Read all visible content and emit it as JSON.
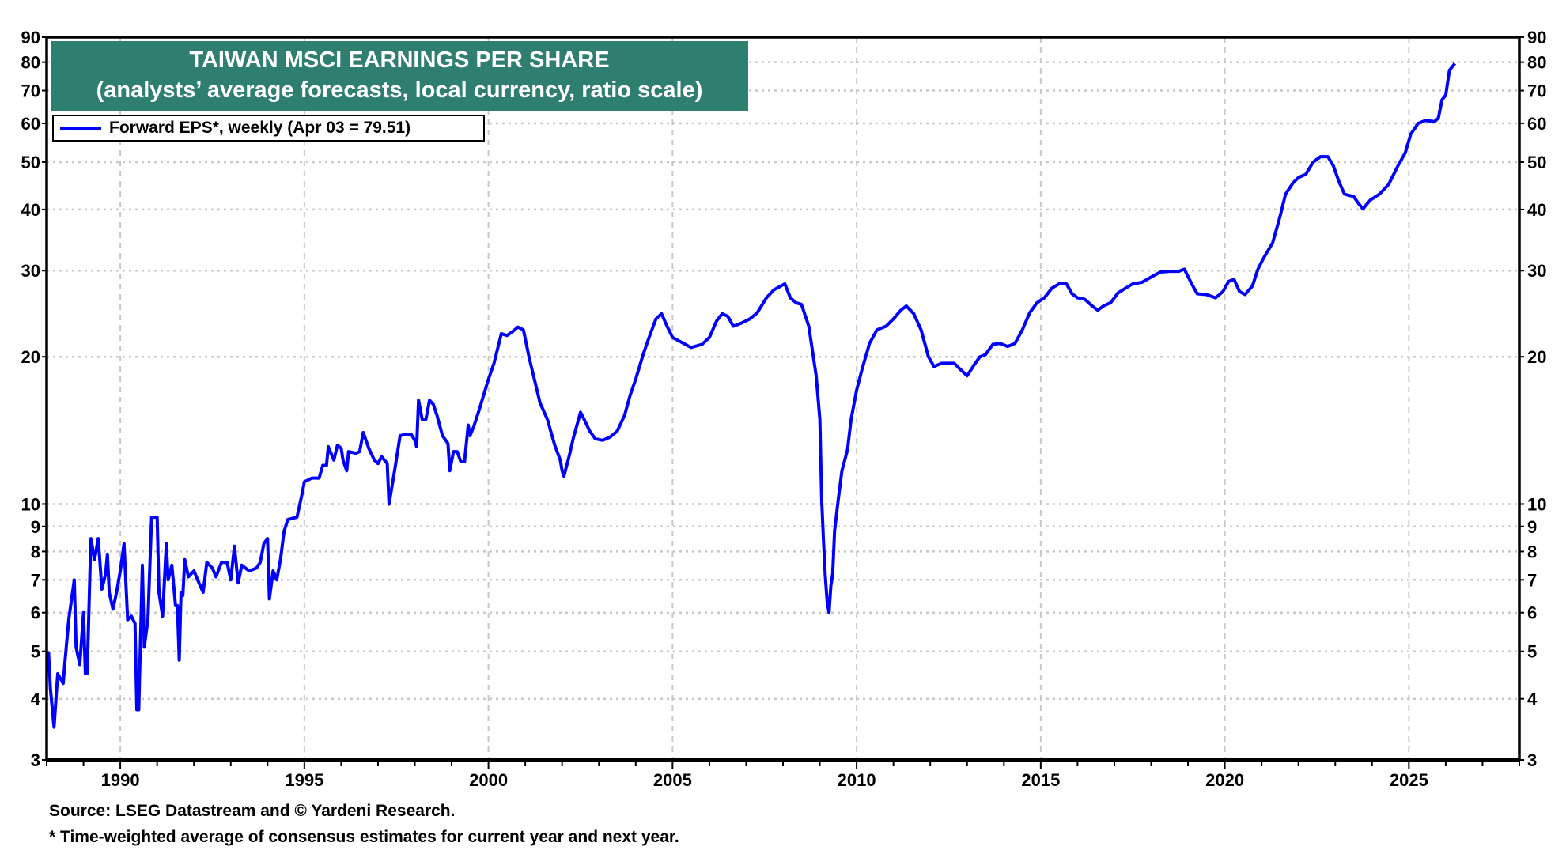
{
  "chart_data": {
    "type": "line",
    "title": "TAIWAN MSCI EARNINGS PER SHARE",
    "subtitle": "(analysts’ average forecasts, local currency, ratio scale)",
    "xlabel": "",
    "ylabel": "",
    "xlim": [
      1988,
      2028
    ],
    "ylim": [
      3,
      90
    ],
    "y_scale": "log",
    "grid": true,
    "legend_position": "top-left",
    "x_ticks": [
      "1990",
      "1995",
      "2000",
      "2005",
      "2010",
      "2015",
      "2020",
      "2025"
    ],
    "y_ticks": [
      "3",
      "4",
      "5",
      "6",
      "7",
      "8",
      "9",
      "10",
      "20",
      "30",
      "40",
      "50",
      "60",
      "70",
      "80",
      "90"
    ],
    "series": [
      {
        "name": "Forward EPS*, weekly (Apr 03 = 79.51)",
        "color": "#0000FF",
        "points": [
          [
            1988.05,
            5.0
          ],
          [
            1988.1,
            4.2
          ],
          [
            1988.2,
            3.5
          ],
          [
            1988.3,
            4.5
          ],
          [
            1988.45,
            4.3
          ],
          [
            1988.5,
            4.8
          ],
          [
            1988.6,
            5.8
          ],
          [
            1988.75,
            7.0
          ],
          [
            1988.8,
            5.1
          ],
          [
            1988.9,
            4.7
          ],
          [
            1989.0,
            6.0
          ],
          [
            1989.05,
            4.5
          ],
          [
            1989.1,
            4.5
          ],
          [
            1989.2,
            8.5
          ],
          [
            1989.3,
            7.7
          ],
          [
            1989.4,
            8.5
          ],
          [
            1989.5,
            6.7
          ],
          [
            1989.6,
            7.2
          ],
          [
            1989.65,
            7.9
          ],
          [
            1989.7,
            6.6
          ],
          [
            1989.8,
            6.1
          ],
          [
            1989.9,
            6.6
          ],
          [
            1990.0,
            7.3
          ],
          [
            1990.1,
            8.3
          ],
          [
            1990.2,
            5.8
          ],
          [
            1990.3,
            5.9
          ],
          [
            1990.4,
            5.7
          ],
          [
            1990.45,
            3.8
          ],
          [
            1990.5,
            3.8
          ],
          [
            1990.6,
            7.5
          ],
          [
            1990.65,
            5.1
          ],
          [
            1990.75,
            5.8
          ],
          [
            1990.85,
            9.4
          ],
          [
            1991.0,
            9.4
          ],
          [
            1991.05,
            6.6
          ],
          [
            1991.15,
            5.9
          ],
          [
            1991.25,
            8.3
          ],
          [
            1991.3,
            7.0
          ],
          [
            1991.4,
            7.5
          ],
          [
            1991.5,
            6.2
          ],
          [
            1991.55,
            6.2
          ],
          [
            1991.6,
            4.8
          ],
          [
            1991.65,
            6.6
          ],
          [
            1991.7,
            6.5
          ],
          [
            1991.75,
            7.7
          ],
          [
            1991.85,
            7.1
          ],
          [
            1992.0,
            7.3
          ],
          [
            1992.1,
            7.0
          ],
          [
            1992.25,
            6.6
          ],
          [
            1992.35,
            7.6
          ],
          [
            1992.5,
            7.4
          ],
          [
            1992.6,
            7.1
          ],
          [
            1992.75,
            7.6
          ],
          [
            1992.9,
            7.6
          ],
          [
            1993.0,
            7.0
          ],
          [
            1993.1,
            8.2
          ],
          [
            1993.2,
            6.9
          ],
          [
            1993.3,
            7.5
          ],
          [
            1993.5,
            7.3
          ],
          [
            1993.7,
            7.4
          ],
          [
            1993.8,
            7.6
          ],
          [
            1993.9,
            8.3
          ],
          [
            1994.0,
            8.5
          ],
          [
            1994.05,
            6.4
          ],
          [
            1994.15,
            7.3
          ],
          [
            1994.25,
            7.0
          ],
          [
            1994.35,
            7.7
          ],
          [
            1994.45,
            8.8
          ],
          [
            1994.55,
            9.3
          ],
          [
            1994.8,
            9.4
          ],
          [
            1994.95,
            10.6
          ],
          [
            1995.0,
            11.1
          ],
          [
            1995.2,
            11.3
          ],
          [
            1995.4,
            11.3
          ],
          [
            1995.5,
            12.0
          ],
          [
            1995.6,
            12.0
          ],
          [
            1995.65,
            13.1
          ],
          [
            1995.8,
            12.3
          ],
          [
            1995.9,
            13.2
          ],
          [
            1996.0,
            13.0
          ],
          [
            1996.05,
            12.3
          ],
          [
            1996.15,
            11.7
          ],
          [
            1996.2,
            12.8
          ],
          [
            1996.4,
            12.7
          ],
          [
            1996.5,
            12.8
          ],
          [
            1996.6,
            14.0
          ],
          [
            1996.75,
            13.0
          ],
          [
            1996.9,
            12.3
          ],
          [
            1997.0,
            12.1
          ],
          [
            1997.1,
            12.5
          ],
          [
            1997.25,
            12.1
          ],
          [
            1997.3,
            10.0
          ],
          [
            1997.45,
            11.7
          ],
          [
            1997.6,
            13.8
          ],
          [
            1997.8,
            13.9
          ],
          [
            1997.9,
            13.9
          ],
          [
            1998.0,
            13.5
          ],
          [
            1998.05,
            13.1
          ],
          [
            1998.1,
            16.3
          ],
          [
            1998.2,
            14.9
          ],
          [
            1998.3,
            14.9
          ],
          [
            1998.4,
            16.3
          ],
          [
            1998.5,
            16.0
          ],
          [
            1998.6,
            15.2
          ],
          [
            1998.75,
            13.8
          ],
          [
            1998.9,
            13.3
          ],
          [
            1998.95,
            11.7
          ],
          [
            1999.05,
            12.8
          ],
          [
            1999.15,
            12.8
          ],
          [
            1999.25,
            12.2
          ],
          [
            1999.35,
            12.2
          ],
          [
            1999.45,
            14.5
          ],
          [
            1999.5,
            13.8
          ],
          [
            1999.6,
            14.4
          ],
          [
            1999.75,
            15.6
          ],
          [
            1999.9,
            17.0
          ],
          [
            2000.0,
            18.0
          ],
          [
            2000.15,
            19.4
          ],
          [
            2000.35,
            22.3
          ],
          [
            2000.5,
            22.1
          ],
          [
            2000.65,
            22.5
          ],
          [
            2000.8,
            23.0
          ],
          [
            2000.95,
            22.7
          ],
          [
            2001.1,
            20.0
          ],
          [
            2001.2,
            18.6
          ],
          [
            2001.4,
            16.1
          ],
          [
            2001.6,
            14.9
          ],
          [
            2001.8,
            13.2
          ],
          [
            2001.95,
            12.3
          ],
          [
            2002.0,
            11.7
          ],
          [
            2002.05,
            11.4
          ],
          [
            2002.2,
            12.6
          ],
          [
            2002.3,
            13.6
          ],
          [
            2002.5,
            15.4
          ],
          [
            2002.6,
            14.9
          ],
          [
            2002.75,
            14.1
          ],
          [
            2002.9,
            13.6
          ],
          [
            2003.1,
            13.5
          ],
          [
            2003.3,
            13.7
          ],
          [
            2003.5,
            14.1
          ],
          [
            2003.7,
            15.2
          ],
          [
            2003.85,
            16.7
          ],
          [
            2004.0,
            18.0
          ],
          [
            2004.2,
            20.2
          ],
          [
            2004.4,
            22.3
          ],
          [
            2004.55,
            23.9
          ],
          [
            2004.7,
            24.5
          ],
          [
            2004.85,
            23.1
          ],
          [
            2005.0,
            21.9
          ],
          [
            2005.3,
            21.3
          ],
          [
            2005.5,
            20.9
          ],
          [
            2005.8,
            21.2
          ],
          [
            2006.0,
            21.9
          ],
          [
            2006.2,
            23.7
          ],
          [
            2006.35,
            24.5
          ],
          [
            2006.5,
            24.2
          ],
          [
            2006.65,
            23.1
          ],
          [
            2006.85,
            23.4
          ],
          [
            2007.1,
            23.9
          ],
          [
            2007.3,
            24.6
          ],
          [
            2007.55,
            26.4
          ],
          [
            2007.75,
            27.4
          ],
          [
            2007.9,
            27.8
          ],
          [
            2008.05,
            28.2
          ],
          [
            2008.2,
            26.4
          ],
          [
            2008.35,
            25.8
          ],
          [
            2008.5,
            25.6
          ],
          [
            2008.7,
            23.1
          ],
          [
            2008.9,
            18.3
          ],
          [
            2009.0,
            14.9
          ],
          [
            2009.05,
            10.2
          ],
          [
            2009.1,
            8.4
          ],
          [
            2009.15,
            7.1
          ],
          [
            2009.2,
            6.3
          ],
          [
            2009.25,
            6.0
          ],
          [
            2009.3,
            6.8
          ],
          [
            2009.35,
            7.2
          ],
          [
            2009.4,
            8.8
          ],
          [
            2009.5,
            10.2
          ],
          [
            2009.6,
            11.7
          ],
          [
            2009.75,
            12.9
          ],
          [
            2009.85,
            14.9
          ],
          [
            2010.0,
            17.1
          ],
          [
            2010.15,
            18.9
          ],
          [
            2010.35,
            21.3
          ],
          [
            2010.55,
            22.7
          ],
          [
            2010.8,
            23.1
          ],
          [
            2011.0,
            23.9
          ],
          [
            2011.2,
            24.9
          ],
          [
            2011.35,
            25.4
          ],
          [
            2011.55,
            24.5
          ],
          [
            2011.75,
            22.7
          ],
          [
            2011.95,
            20.0
          ],
          [
            2012.1,
            19.1
          ],
          [
            2012.3,
            19.4
          ],
          [
            2012.5,
            19.4
          ],
          [
            2012.65,
            19.4
          ],
          [
            2012.8,
            18.9
          ],
          [
            2013.0,
            18.3
          ],
          [
            2013.2,
            19.3
          ],
          [
            2013.35,
            20.0
          ],
          [
            2013.5,
            20.2
          ],
          [
            2013.7,
            21.2
          ],
          [
            2013.9,
            21.3
          ],
          [
            2014.1,
            21.0
          ],
          [
            2014.3,
            21.3
          ],
          [
            2014.5,
            22.7
          ],
          [
            2014.7,
            24.6
          ],
          [
            2014.9,
            25.8
          ],
          [
            2015.1,
            26.4
          ],
          [
            2015.3,
            27.6
          ],
          [
            2015.5,
            28.2
          ],
          [
            2015.7,
            28.2
          ],
          [
            2015.85,
            26.9
          ],
          [
            2016.0,
            26.4
          ],
          [
            2016.2,
            26.2
          ],
          [
            2016.4,
            25.4
          ],
          [
            2016.55,
            24.9
          ],
          [
            2016.7,
            25.4
          ],
          [
            2016.9,
            25.8
          ],
          [
            2017.1,
            27.0
          ],
          [
            2017.3,
            27.6
          ],
          [
            2017.5,
            28.2
          ],
          [
            2017.75,
            28.4
          ],
          [
            2018.0,
            29.1
          ],
          [
            2018.25,
            29.8
          ],
          [
            2018.5,
            29.9
          ],
          [
            2018.75,
            29.9
          ],
          [
            2018.9,
            30.2
          ],
          [
            2019.1,
            28.2
          ],
          [
            2019.25,
            26.9
          ],
          [
            2019.5,
            26.8
          ],
          [
            2019.75,
            26.4
          ],
          [
            2019.95,
            27.2
          ],
          [
            2020.1,
            28.5
          ],
          [
            2020.25,
            28.8
          ],
          [
            2020.4,
            27.2
          ],
          [
            2020.55,
            26.8
          ],
          [
            2020.75,
            27.9
          ],
          [
            2020.9,
            30.2
          ],
          [
            2021.05,
            31.8
          ],
          [
            2021.3,
            34.2
          ],
          [
            2021.5,
            38.7
          ],
          [
            2021.65,
            43.0
          ],
          [
            2021.85,
            45.3
          ],
          [
            2022.0,
            46.5
          ],
          [
            2022.2,
            47.2
          ],
          [
            2022.4,
            50.0
          ],
          [
            2022.6,
            51.3
          ],
          [
            2022.8,
            51.3
          ],
          [
            2022.95,
            49.1
          ],
          [
            2023.1,
            45.6
          ],
          [
            2023.25,
            43.0
          ],
          [
            2023.5,
            42.5
          ],
          [
            2023.65,
            41.0
          ],
          [
            2023.75,
            40.1
          ],
          [
            2023.95,
            41.8
          ],
          [
            2024.2,
            43.0
          ],
          [
            2024.45,
            45.0
          ],
          [
            2024.7,
            49.1
          ],
          [
            2024.9,
            52.2
          ],
          [
            2025.05,
            57.0
          ],
          [
            2025.25,
            60.0
          ],
          [
            2025.45,
            60.8
          ],
          [
            2025.7,
            60.5
          ],
          [
            2025.8,
            61.5
          ],
          [
            2025.9,
            67.0
          ],
          [
            2026.0,
            68.5
          ],
          [
            2026.1,
            77.0
          ],
          [
            2026.25,
            79.51
          ]
        ]
      }
    ]
  },
  "footer": {
    "source": "Source: LSEG Datastream and © Yardeni Research.",
    "note": "* Time-weighted average of consensus estimates for current year and next year."
  }
}
